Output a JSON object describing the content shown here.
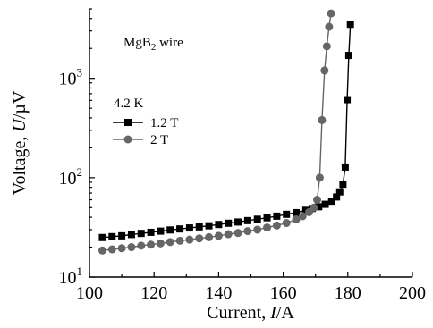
{
  "chart_data": {
    "type": "scatter",
    "title": "",
    "xlabel": "Current, I/A",
    "ylabel": "Voltage, U/µV",
    "xlim": [
      100,
      200
    ],
    "ylim": [
      10,
      5000
    ],
    "yscale": "log",
    "grid": false,
    "legend_placement": "upper-left",
    "x_ticks": [
      "100",
      "120",
      "140",
      "160",
      "180",
      "200"
    ],
    "y_ticks": [
      {
        "value": 10,
        "base": "10",
        "exp": "1"
      },
      {
        "value": 100,
        "base": "10",
        "exp": "2"
      },
      {
        "value": 1000,
        "base": "10",
        "exp": "3"
      }
    ],
    "annotations": {
      "sample": {
        "text": "MgB",
        "sub": "2",
        "rest": " wire"
      },
      "temperature": "4.2 K"
    },
    "series": [
      {
        "name": "1.2 T",
        "marker": "square",
        "color": "#000000",
        "x": [
          104,
          107,
          110,
          113,
          116,
          119,
          122,
          125,
          128,
          131,
          134,
          137,
          140,
          143,
          146,
          149,
          152,
          155,
          158,
          161,
          164,
          167,
          169,
          171,
          173,
          175,
          176.5,
          177.5,
          178.5,
          179.2,
          179.8,
          180.3,
          180.8
        ],
        "y": [
          25,
          25.5,
          26,
          26.8,
          27.5,
          28.2,
          29,
          29.8,
          30.5,
          31.2,
          32,
          32.8,
          33.8,
          34.8,
          35.8,
          37,
          38.2,
          39.5,
          41,
          42.8,
          44.5,
          47,
          49,
          51,
          54,
          58,
          64,
          72,
          86,
          128,
          610,
          1700,
          3500
        ]
      },
      {
        "name": "2 T",
        "marker": "circle",
        "color": "#666666",
        "x": [
          104,
          107,
          110,
          113,
          116,
          119,
          122,
          125,
          128,
          131,
          134,
          137,
          140,
          143,
          146,
          149,
          152,
          155,
          158,
          161,
          164,
          166,
          168,
          169.5,
          170.5,
          171.3,
          172,
          172.8,
          173.5,
          174.2,
          174.8
        ],
        "y": [
          18.5,
          19,
          19.5,
          20,
          20.7,
          21.2,
          21.8,
          22.5,
          23.2,
          23.8,
          24.5,
          25.2,
          26,
          27,
          27.8,
          29,
          30,
          31.5,
          33,
          35,
          38,
          41,
          45,
          50,
          60,
          100,
          380,
          1200,
          2100,
          3300,
          4500
        ]
      }
    ]
  }
}
